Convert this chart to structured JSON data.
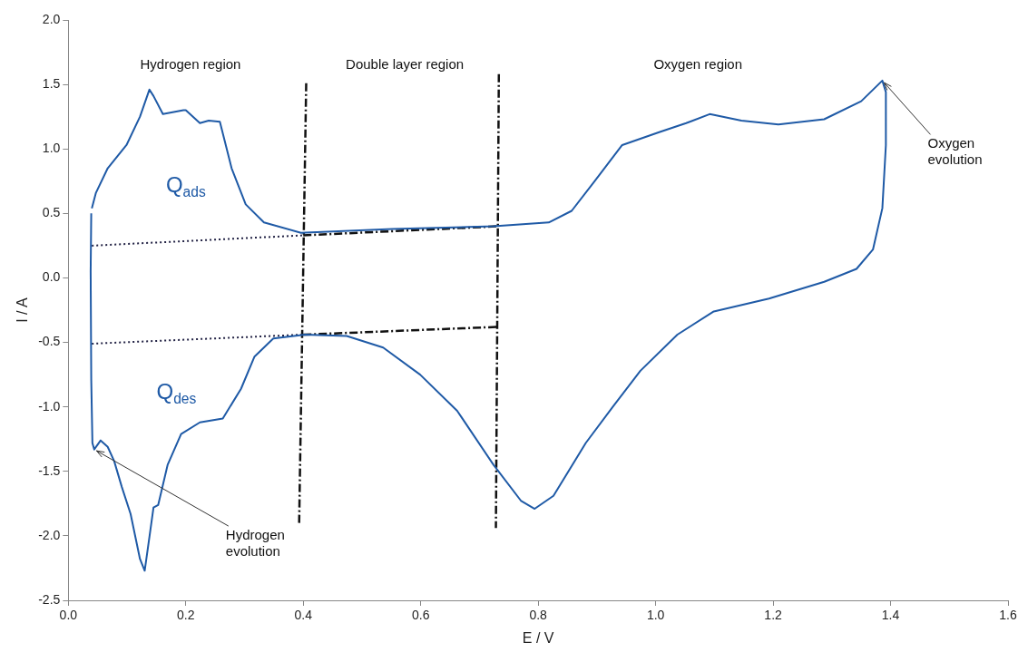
{
  "chart_data": {
    "type": "line",
    "xlabel": "E / V",
    "ylabel": "I / A",
    "xlim": [
      0,
      1.6
    ],
    "ylim": [
      -2.5,
      2
    ],
    "xticks": [
      {
        "value": 0,
        "label": "0.0"
      },
      {
        "value": 0.2,
        "label": "0.2"
      },
      {
        "value": 0.4,
        "label": "0.4"
      },
      {
        "value": 0.6,
        "label": "0.6"
      },
      {
        "value": 0.8,
        "label": "0.8"
      },
      {
        "value": 1,
        "label": "1.0"
      },
      {
        "value": 1.2,
        "label": "1.2"
      },
      {
        "value": 1.4,
        "label": "1.4"
      },
      {
        "value": 1.6,
        "label": "1.6"
      }
    ],
    "yticks": [
      {
        "value": -2.5,
        "label": "-2.5"
      },
      {
        "value": -2,
        "label": "-2.0"
      },
      {
        "value": -1.5,
        "label": "-1.5"
      },
      {
        "value": -1,
        "label": "-1.0"
      },
      {
        "value": -0.5,
        "label": "-0.5"
      },
      {
        "value": 0,
        "label": "0.0"
      },
      {
        "value": 0.5,
        "label": "0.5"
      },
      {
        "value": 1,
        "label": "1.0"
      },
      {
        "value": 1.5,
        "label": "1.5"
      },
      {
        "value": 2,
        "label": "2.0"
      }
    ],
    "grid": false,
    "legend": false,
    "marker": "none",
    "series": [
      {
        "color": "#1f5aa6",
        "line_style": "solid",
        "x": [
          0.04,
          0.047,
          0.067,
          0.099,
          0.122,
          0.138,
          0.145,
          0.161,
          0.196,
          0.2,
          0.224,
          0.239,
          0.258,
          0.278,
          0.302,
          0.333,
          0.396,
          0.552,
          0.724,
          0.818,
          0.857,
          0.896,
          0.943,
          1.006,
          1.052,
          1.092,
          1.146,
          1.209,
          1.287,
          1.35,
          1.386,
          1.392,
          1.392,
          1.386,
          1.37,
          1.342,
          1.287,
          1.193,
          1.099,
          1.037,
          0.974,
          0.927,
          0.881,
          0.826,
          0.794,
          0.771,
          0.724,
          0.662,
          0.599,
          0.536,
          0.474,
          0.403,
          0.349,
          0.317,
          0.294,
          0.263,
          0.224,
          0.192,
          0.169,
          0.153,
          0.145,
          0.138,
          0.13,
          0.122,
          0.106,
          0.091,
          0.078,
          0.067,
          0.055,
          0.044,
          0.041,
          0.039,
          0.038,
          0.039
        ],
        "values": [
          0.54,
          0.66,
          0.85,
          1.03,
          1.25,
          1.46,
          1.41,
          1.27,
          1.3,
          1.3,
          1.2,
          1.22,
          1.21,
          0.85,
          0.57,
          0.43,
          0.35,
          0.38,
          0.4,
          0.43,
          0.52,
          0.75,
          1.03,
          1.13,
          1.2,
          1.27,
          1.22,
          1.19,
          1.23,
          1.37,
          1.53,
          1.44,
          1.03,
          0.54,
          0.22,
          0.07,
          -0.03,
          -0.16,
          -0.26,
          -0.44,
          -0.72,
          -1,
          -1.28,
          -1.69,
          -1.79,
          -1.73,
          -1.45,
          -1.03,
          -0.75,
          -0.54,
          -0.45,
          -0.44,
          -0.47,
          -0.61,
          -0.86,
          -1.09,
          -1.12,
          -1.21,
          -1.45,
          -1.76,
          -1.78,
          -2.01,
          -2.27,
          -2.18,
          -1.83,
          -1.62,
          -1.42,
          -1.31,
          -1.26,
          -1.33,
          -1.28,
          -0.79,
          0.05,
          0.5
        ]
      },
      {
        "color": "#222244",
        "line_style": "dotted",
        "x": [
          0.04,
          0.4
        ],
        "values": [
          0.25,
          0.33
        ]
      },
      {
        "color": "#222244",
        "line_style": "dotted",
        "x": [
          0.04,
          0.4
        ],
        "values": [
          -0.51,
          -0.44
        ]
      },
      {
        "color": "#111111",
        "line_style": "dashed",
        "x": [
          0.4,
          0.73
        ],
        "values": [
          0.33,
          0.4
        ]
      },
      {
        "color": "#111111",
        "line_style": "dashed",
        "x": [
          0.4,
          0.73
        ],
        "values": [
          -0.44,
          -0.38
        ]
      },
      {
        "color": "#111111",
        "line_style": "dashed",
        "x": [
          0.405,
          0.393
        ],
        "values": [
          1.51,
          -1.9
        ]
      },
      {
        "color": "#111111",
        "line_style": "dashed",
        "x": [
          0.733,
          0.728
        ],
        "values": [
          1.58,
          -1.94
        ]
      }
    ],
    "annotations": [
      "Hydrogen region",
      "Double layer region",
      "Oxygen region",
      "Q$_{ads}$",
      "Q$_{des}$",
      {
        "text": "Hydrogen evolution",
        "x": 0.044,
        "y": -1.33
      },
      {
        "text": "Oxygen evolution",
        "x": 1.386,
        "y": 1.53
      }
    ]
  }
}
